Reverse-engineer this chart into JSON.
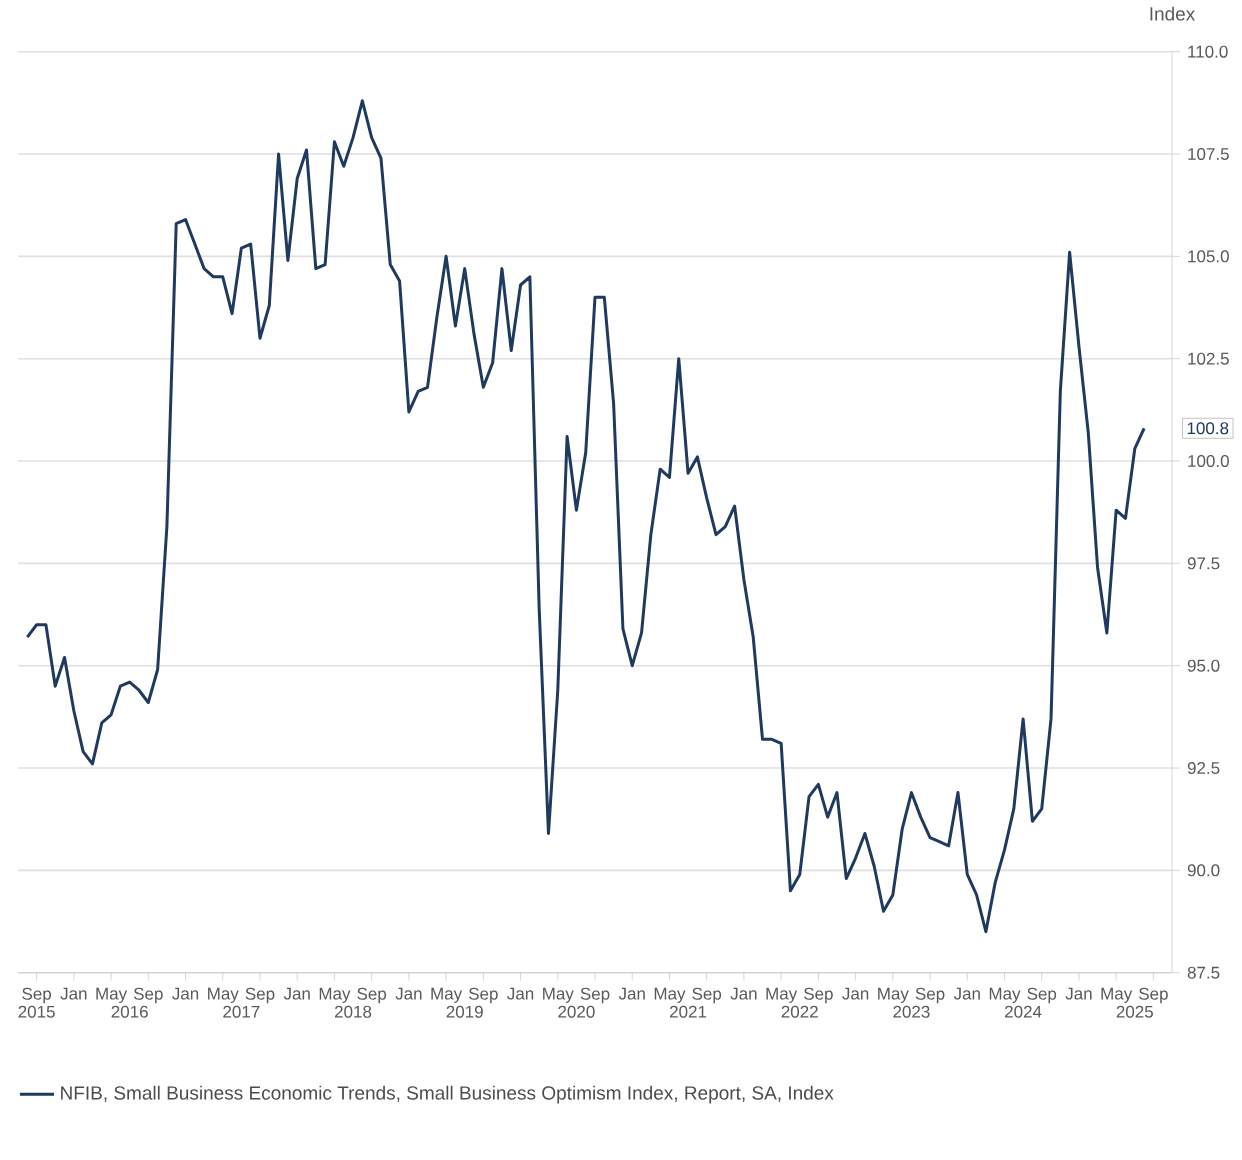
{
  "chart_data": {
    "type": "line",
    "ylabel": "Index",
    "x": [
      "2015-08",
      "2015-09",
      "2015-10",
      "2015-11",
      "2015-12",
      "2016-01",
      "2016-02",
      "2016-03",
      "2016-04",
      "2016-05",
      "2016-06",
      "2016-07",
      "2016-08",
      "2016-09",
      "2016-10",
      "2016-11",
      "2016-12",
      "2017-01",
      "2017-02",
      "2017-03",
      "2017-04",
      "2017-05",
      "2017-06",
      "2017-07",
      "2017-08",
      "2017-09",
      "2017-10",
      "2017-11",
      "2017-12",
      "2018-01",
      "2018-02",
      "2018-03",
      "2018-04",
      "2018-05",
      "2018-06",
      "2018-07",
      "2018-08",
      "2018-09",
      "2018-10",
      "2018-11",
      "2018-12",
      "2019-01",
      "2019-02",
      "2019-03",
      "2019-04",
      "2019-05",
      "2019-06",
      "2019-07",
      "2019-08",
      "2019-09",
      "2019-10",
      "2019-11",
      "2019-12",
      "2020-01",
      "2020-02",
      "2020-03",
      "2020-04",
      "2020-05",
      "2020-06",
      "2020-07",
      "2020-08",
      "2020-09",
      "2020-10",
      "2020-11",
      "2020-12",
      "2021-01",
      "2021-02",
      "2021-03",
      "2021-04",
      "2021-05",
      "2021-06",
      "2021-07",
      "2021-08",
      "2021-09",
      "2021-10",
      "2021-11",
      "2021-12",
      "2022-01",
      "2022-02",
      "2022-03",
      "2022-04",
      "2022-05",
      "2022-06",
      "2022-07",
      "2022-08",
      "2022-09",
      "2022-10",
      "2022-11",
      "2022-12",
      "2023-01",
      "2023-02",
      "2023-03",
      "2023-04",
      "2023-05",
      "2023-06",
      "2023-07",
      "2023-08",
      "2023-09",
      "2023-10",
      "2023-11",
      "2023-12",
      "2024-01",
      "2024-02",
      "2024-03",
      "2024-04",
      "2024-05",
      "2024-06",
      "2024-07",
      "2024-08",
      "2024-09",
      "2024-10",
      "2024-11",
      "2024-12",
      "2025-01",
      "2025-02",
      "2025-03",
      "2025-04",
      "2025-05",
      "2025-06",
      "2025-07",
      "2025-08"
    ],
    "series": [
      {
        "name": "NFIB, Small Business Economic Trends, Small Business Optimism Index, Report, SA, Index",
        "color": "#1f3a5f",
        "values": [
          95.7,
          96.0,
          96.0,
          94.5,
          95.2,
          93.9,
          92.9,
          92.6,
          93.6,
          93.8,
          94.5,
          94.6,
          94.4,
          94.1,
          94.9,
          98.4,
          105.8,
          105.9,
          105.3,
          104.7,
          104.5,
          104.5,
          103.6,
          105.2,
          105.3,
          103.0,
          103.8,
          107.5,
          104.9,
          106.9,
          107.6,
          104.7,
          104.8,
          107.8,
          107.2,
          107.9,
          108.8,
          107.9,
          107.4,
          104.8,
          104.4,
          101.2,
          101.7,
          101.8,
          103.5,
          105.0,
          103.3,
          104.7,
          103.1,
          101.8,
          102.4,
          104.7,
          102.7,
          104.3,
          104.5,
          96.4,
          90.9,
          94.4,
          100.6,
          98.8,
          100.2,
          104.0,
          104.0,
          101.4,
          95.9,
          95.0,
          95.8,
          98.2,
          99.8,
          99.6,
          102.5,
          99.7,
          100.1,
          99.1,
          98.2,
          98.4,
          98.9,
          97.1,
          95.7,
          93.2,
          93.2,
          93.1,
          89.5,
          89.9,
          91.8,
          92.1,
          91.3,
          91.9,
          89.8,
          90.3,
          90.9,
          90.1,
          89.0,
          89.4,
          91.0,
          91.9,
          91.3,
          90.8,
          90.7,
          90.6,
          91.9,
          89.9,
          89.4,
          88.5,
          89.7,
          90.5,
          91.5,
          93.7,
          91.2,
          91.5,
          93.7,
          101.7,
          105.1,
          102.8,
          100.7,
          97.4,
          95.8,
          98.8,
          98.6,
          100.3,
          100.8
        ]
      }
    ],
    "xlim": [
      "2015-07",
      "2025-11"
    ],
    "xticks": [
      {
        "value": "2015-09",
        "label": "Sep"
      },
      {
        "value": "2016-01",
        "label": "Jan"
      },
      {
        "value": "2016-05",
        "label": "May"
      },
      {
        "value": "2016-09",
        "label": "Sep"
      },
      {
        "value": "2017-01",
        "label": "Jan"
      },
      {
        "value": "2017-05",
        "label": "May"
      },
      {
        "value": "2017-09",
        "label": "Sep"
      },
      {
        "value": "2018-01",
        "label": "Jan"
      },
      {
        "value": "2018-05",
        "label": "May"
      },
      {
        "value": "2018-09",
        "label": "Sep"
      },
      {
        "value": "2019-01",
        "label": "Jan"
      },
      {
        "value": "2019-05",
        "label": "May"
      },
      {
        "value": "2019-09",
        "label": "Sep"
      },
      {
        "value": "2020-01",
        "label": "Jan"
      },
      {
        "value": "2020-05",
        "label": "May"
      },
      {
        "value": "2020-09",
        "label": "Sep"
      },
      {
        "value": "2021-01",
        "label": "Jan"
      },
      {
        "value": "2021-05",
        "label": "May"
      },
      {
        "value": "2021-09",
        "label": "Sep"
      },
      {
        "value": "2022-01",
        "label": "Jan"
      },
      {
        "value": "2022-05",
        "label": "May"
      },
      {
        "value": "2022-09",
        "label": "Sep"
      },
      {
        "value": "2023-01",
        "label": "Jan"
      },
      {
        "value": "2023-05",
        "label": "May"
      },
      {
        "value": "2023-09",
        "label": "Sep"
      },
      {
        "value": "2024-01",
        "label": "Jan"
      },
      {
        "value": "2024-05",
        "label": "May"
      },
      {
        "value": "2024-09",
        "label": "Sep"
      },
      {
        "value": "2025-01",
        "label": "Jan"
      },
      {
        "value": "2025-05",
        "label": "May"
      },
      {
        "value": "2025-09",
        "label": "Sep"
      }
    ],
    "x2lim": [
      "2015-07",
      "2025-11"
    ],
    "x2ticks": [
      {
        "value": "2015-09-01",
        "label": "2015"
      },
      {
        "value": "2016-07-01",
        "label": "2016"
      },
      {
        "value": "2017-07-01",
        "label": "2017"
      },
      {
        "value": "2018-07-01",
        "label": "2018"
      },
      {
        "value": "2019-07-01",
        "label": "2019"
      },
      {
        "value": "2020-07-01",
        "label": "2020"
      },
      {
        "value": "2021-07-01",
        "label": "2021"
      },
      {
        "value": "2022-07-01",
        "label": "2022"
      },
      {
        "value": "2023-07-01",
        "label": "2023"
      },
      {
        "value": "2024-07-01",
        "label": "2024"
      },
      {
        "value": "2025-07-01",
        "label": "2025"
      }
    ],
    "ylim": [
      87.5,
      110
    ],
    "yticks": [
      87.5,
      {
        "value": 90,
        "label": "90.0"
      },
      92.5,
      {
        "value": 95,
        "label": "95.0"
      },
      97.5,
      {
        "value": 100,
        "label": "100.0"
      },
      102.5,
      {
        "value": 105,
        "label": "105.0"
      },
      107.5,
      {
        "value": 110,
        "label": "110.0"
      }
    ],
    "annotations": [
      {
        "text": "100.8",
        "x": "2025-08",
        "y": 100.8
      }
    ],
    "grid": "y",
    "legend": "bottom",
    "marker": "none",
    "line_style": "solid"
  }
}
